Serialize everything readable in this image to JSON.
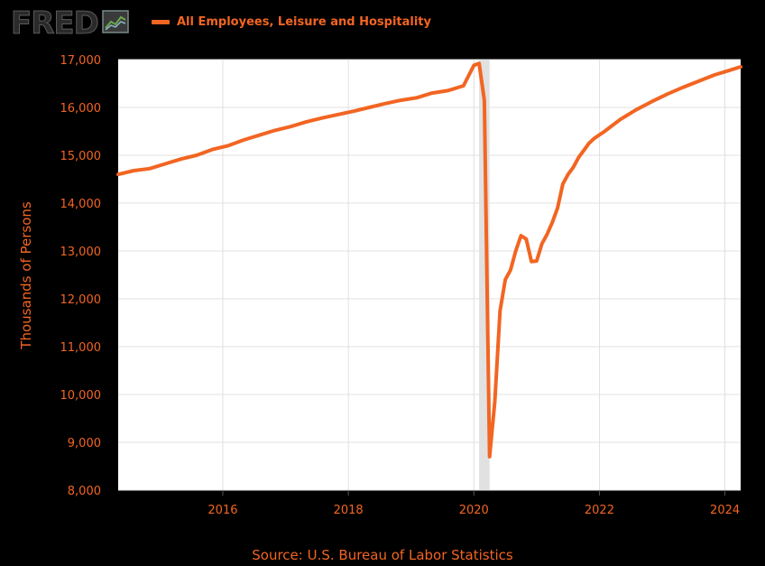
{
  "header": {
    "logo_text": "FRED",
    "logo_icon": "trend-chart-icon",
    "legend_label": "All Employees, Leisure and Hospitality"
  },
  "footer": {
    "source": "Source: U.S. Bureau of Labor Statistics"
  },
  "colors": {
    "background": "#000000",
    "plot_bg": "#ffffff",
    "line": "#f26522",
    "text": "#f26522",
    "grid": "#e0e0e0",
    "recession": "#e1e1e1"
  },
  "chart_data": {
    "type": "line",
    "title": "",
    "xlabel": "",
    "ylabel": "Thousands of Persons",
    "ylim": [
      8000,
      17000
    ],
    "xlim": [
      "2014-05",
      "2024-04"
    ],
    "y_ticks": [
      "8,000",
      "9,000",
      "10,000",
      "11,000",
      "12,000",
      "13,000",
      "14,000",
      "15,000",
      "16,000",
      "17,000"
    ],
    "x_ticks": [
      "2016",
      "2018",
      "2020",
      "2022",
      "2024"
    ],
    "grid": true,
    "recession": {
      "start": "2020-02",
      "end": "2020-04"
    },
    "series": [
      {
        "name": "All Employees, Leisure and Hospitality",
        "points": [
          [
            "2014-05",
            14600
          ],
          [
            "2014-08",
            14680
          ],
          [
            "2014-11",
            14720
          ],
          [
            "2015-02",
            14820
          ],
          [
            "2015-05",
            14920
          ],
          [
            "2015-08",
            15000
          ],
          [
            "2015-11",
            15120
          ],
          [
            "2016-02",
            15200
          ],
          [
            "2016-05",
            15320
          ],
          [
            "2016-08",
            15420
          ],
          [
            "2016-11",
            15520
          ],
          [
            "2017-02",
            15600
          ],
          [
            "2017-05",
            15700
          ],
          [
            "2017-08",
            15780
          ],
          [
            "2017-11",
            15850
          ],
          [
            "2018-02",
            15920
          ],
          [
            "2018-05",
            16000
          ],
          [
            "2018-08",
            16080
          ],
          [
            "2018-11",
            16150
          ],
          [
            "2019-02",
            16200
          ],
          [
            "2019-05",
            16300
          ],
          [
            "2019-08",
            16350
          ],
          [
            "2019-11",
            16450
          ],
          [
            "2020-01",
            16880
          ],
          [
            "2020-02",
            16920
          ],
          [
            "2020-03",
            16150
          ],
          [
            "2020-04",
            8700
          ],
          [
            "2020-05",
            9850
          ],
          [
            "2020-06",
            11750
          ],
          [
            "2020-07",
            12400
          ],
          [
            "2020-08",
            12600
          ],
          [
            "2020-09",
            13000
          ],
          [
            "2020-10",
            13320
          ],
          [
            "2020-11",
            13250
          ],
          [
            "2020-12",
            12780
          ],
          [
            "2021-01",
            12790
          ],
          [
            "2021-02",
            13150
          ],
          [
            "2021-03",
            13350
          ],
          [
            "2021-04",
            13600
          ],
          [
            "2021-05",
            13900
          ],
          [
            "2021-06",
            14400
          ],
          [
            "2021-07",
            14600
          ],
          [
            "2021-08",
            14750
          ],
          [
            "2021-09",
            14950
          ],
          [
            "2021-10",
            15100
          ],
          [
            "2021-11",
            15250
          ],
          [
            "2021-12",
            15350
          ],
          [
            "2022-02",
            15500
          ],
          [
            "2022-05",
            15750
          ],
          [
            "2022-08",
            15950
          ],
          [
            "2022-11",
            16120
          ],
          [
            "2023-02",
            16280
          ],
          [
            "2023-05",
            16420
          ],
          [
            "2023-08",
            16550
          ],
          [
            "2023-11",
            16680
          ],
          [
            "2024-02",
            16780
          ],
          [
            "2024-04",
            16850
          ]
        ]
      }
    ]
  }
}
